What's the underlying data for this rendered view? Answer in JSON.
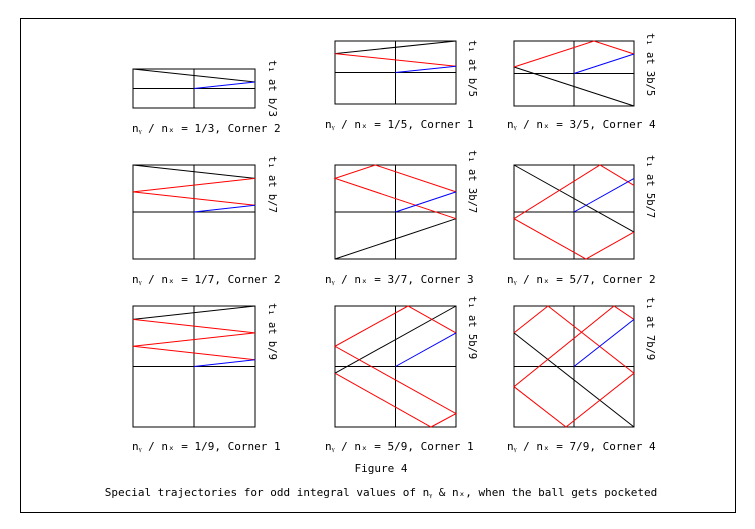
{
  "figure": {
    "label": "Figure 4",
    "caption": "Special trajectories for odd integral values of nᵧ & nₓ, when the ball gets pocketed"
  },
  "colors": {
    "frame": "#000000",
    "path1": "#000000",
    "path2": "#ff0000",
    "path3": "#0000ff"
  },
  "panels": [
    {
      "caption": "nᵧ / nₓ = 1/3, Corner 2",
      "side_label": "t₁ at b/3"
    },
    {
      "caption": "nᵧ / nₓ = 1/5, Corner 1",
      "side_label": "t₁ at b/5"
    },
    {
      "caption": "nᵧ / nₓ = 3/5, Corner 4",
      "side_label": "t₁ at 3b/5"
    },
    {
      "caption": "nᵧ / nₓ = 1/7, Corner 2",
      "side_label": "t₁ at b/7"
    },
    {
      "caption": "nᵧ / nₓ = 3/7, Corner 3",
      "side_label": "t₁ at 3b/7"
    },
    {
      "caption": "nᵧ / nₓ = 5/7, Corner 2",
      "side_label": "t₁ at 5b/7"
    },
    {
      "caption": "nᵧ / nₓ = 1/9, Corner 1",
      "side_label": "t₁ at b/9"
    },
    {
      "caption": "nᵧ / nₓ = 5/9, Corner 1",
      "side_label": "t₁ at 5b/9"
    },
    {
      "caption": "nᵧ / nₓ = 7/9, Corner 4",
      "side_label": "t₁ at 7b/9"
    }
  ]
}
